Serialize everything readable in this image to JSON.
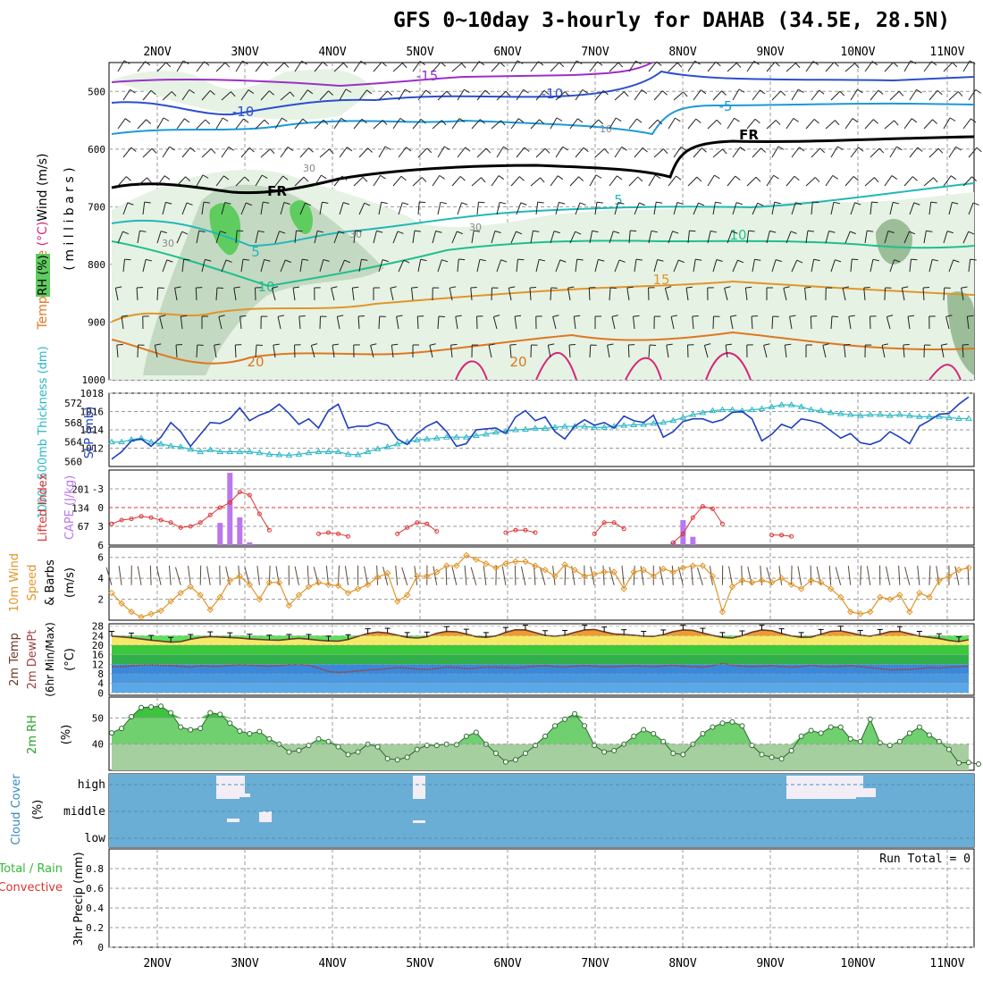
{
  "title": "GFS 0~10day 3-hourly for DAHAB (34.5E, 28.5N)",
  "colors": {
    "grid": "#999999",
    "slp": "#1f3fbf",
    "thickness": "#2ab7c6",
    "lifted": "#dd3333",
    "cape": "#bb77ee",
    "wind10": "#e0962a",
    "tempfill": "#f5e96a",
    "tempmax": "#ef9a2f",
    "dewline": "#a04040",
    "rh": "#55cc55",
    "cloud": "#6aaed6",
    "cloudclear": "#f3eef5",
    "precip_total": "#33bb33",
    "precip_conv": "#dd3333"
  },
  "chart_data": [
    {
      "id": "upper",
      "type": "contour",
      "x_labels_top": [
        "2NOV",
        "3NOV",
        "4NOV",
        "5NOV",
        "6NOV",
        "7NOV",
        "8NOV",
        "9NOV",
        "10NOV",
        "11NOV"
      ],
      "y_ticks": [
        "500",
        "600",
        "700",
        "800",
        "900",
        "1000"
      ],
      "ylabel_parts": [
        "RH (%)",
        "Temperature",
        "(°C)",
        "Wind (m/s)"
      ],
      "ylabel_units": "( m i l l i b a r s )",
      "contour_labels": [
        "-15",
        "-10",
        "-10",
        "-5",
        "FR",
        "FR",
        "5",
        "5",
        "10",
        "10",
        "15",
        "20",
        "20",
        "30",
        "30",
        "30",
        "30",
        "10"
      ]
    },
    {
      "id": "slp",
      "type": "line",
      "title": "SLP (mb)",
      "ylabel2": "1000~500mb Thickness (dm)",
      "y_ticks_right": [
        "1012",
        "1014",
        "1016",
        "1018"
      ],
      "y_ticks_left": [
        "560",
        "564",
        "568",
        "572"
      ],
      "series": [
        {
          "name": "SLP (mb)",
          "values": [
            1010.8,
            1011.6,
            1012.8,
            1013.0,
            1012.2,
            1013.2,
            1014.8,
            1013.8,
            1012.2,
            1013.5,
            1014.8,
            1014.7,
            1015.2,
            1016.4,
            1015.0,
            1015.6,
            1016.0,
            1016.8,
            1015.8,
            1014.6,
            1015.2,
            1014.2,
            1016.1,
            1016.8,
            1014.2,
            1014.4,
            1014.4,
            1014.8,
            1014.5,
            1013.0,
            1012.4,
            1013.6,
            1014.4,
            1014.9,
            1013.8,
            1012.2,
            1012.5,
            1014.0,
            1014.1,
            1014.2,
            1013.6,
            1015.4,
            1016.1,
            1015.0,
            1015.4,
            1013.8,
            1013.0,
            1014.4,
            1015.1,
            1014.5,
            1014.8,
            1014.2,
            1015.5,
            1015.0,
            1014.8,
            1015.6,
            1013.2,
            1013.8,
            1014.9,
            1015.2,
            1015.2,
            1014.8,
            1015.1,
            1015.9,
            1016.0,
            1015.2,
            1012.8,
            1013.5,
            1014.6,
            1014.2,
            1015.2,
            1015.0,
            1014.7,
            1013.9,
            1013.1,
            1013.6,
            1012.6,
            1012.4,
            1012.8,
            1013.8,
            1013.2,
            1012.5,
            1014.4,
            1015.0,
            1015.7,
            1015.8,
            1016.8,
            1017.6
          ]
        },
        {
          "name": "1000~500mb Thickness (dm)",
          "values": [
            564,
            564,
            564.5,
            564.8,
            564,
            563.6,
            563.2,
            563,
            562.5,
            562,
            562.4,
            562,
            562,
            562,
            562,
            561.8,
            561.5,
            561.4,
            561.3,
            561.5,
            561.8,
            562,
            562,
            562,
            561.5,
            561.4,
            562,
            562.6,
            563,
            563.6,
            564,
            564.4,
            564.6,
            564.8,
            565,
            565,
            565,
            565.3,
            565.6,
            566,
            566.2,
            566.5,
            566.6,
            566.8,
            566.8,
            567,
            567.2,
            567.2,
            567.2,
            567,
            567,
            567.2,
            567.4,
            567.5,
            567.6,
            567.8,
            568,
            568.4,
            569,
            569.6,
            570,
            570.4,
            570.6,
            570.6,
            570.4,
            570.6,
            570.8,
            571.2,
            571.6,
            571.6,
            571.2,
            570.6,
            570.4,
            570,
            569.8,
            569.6,
            569.4,
            569.6,
            569.6,
            569.4,
            569.6,
            569.4,
            569.2,
            569.2,
            569.2,
            569.0,
            568.8,
            568.8
          ]
        }
      ],
      "ylim": [
        1010,
        1018
      ]
    },
    {
      "id": "li_cape",
      "type": "bar",
      "ylabel": "Lifted Index",
      "ylabel2": "CAPE (J/kg)",
      "y_ticks_right": [
        "-3",
        "0",
        "3",
        "6"
      ],
      "y_ticks_left": [
        "201",
        "134",
        "67"
      ],
      "series": [
        {
          "name": "Lifted Index",
          "values": [
            2.6,
            2.0,
            1.8,
            1.4,
            1.6,
            2.0,
            2.4,
            3.2,
            3.0,
            2.4,
            1.2,
            0.0,
            -0.8,
            -2.5,
            -2.0,
            1.0,
            3.6,
            6,
            6,
            6,
            6,
            4.2,
            4.0,
            4.2,
            4.6,
            6,
            6,
            6,
            6,
            4.2,
            3.2,
            2.4,
            2.6,
            3.8,
            6,
            6,
            6,
            6,
            6,
            6,
            4.0,
            3.6,
            3.6,
            4.0,
            6,
            6,
            6,
            6,
            6,
            4.2,
            2.4,
            2.4,
            3.4,
            6,
            6,
            6,
            6,
            5.6,
            4.2,
            1.6,
            -0.2,
            0.2,
            2.6,
            6,
            6,
            6,
            6,
            4.4,
            4.4,
            4.6,
            6,
            6,
            6,
            6,
            6,
            6,
            6,
            6,
            6,
            6,
            6,
            6,
            6,
            6,
            6,
            6,
            6,
            6
          ]
        },
        {
          "name": "CAPE (J/kg)",
          "values": [
            0,
            0,
            0,
            0,
            0,
            0,
            0,
            0,
            0,
            0,
            0,
            80,
            260,
            100,
            10,
            0,
            0,
            0,
            0,
            0,
            0,
            0,
            0,
            0,
            0,
            0,
            0,
            0,
            0,
            0,
            0,
            0,
            0,
            0,
            0,
            0,
            0,
            0,
            0,
            0,
            0,
            0,
            0,
            0,
            0,
            0,
            0,
            0,
            0,
            0,
            0,
            0,
            0,
            0,
            0,
            0,
            0,
            10,
            90,
            30,
            0,
            0,
            0,
            0,
            0,
            0,
            0,
            0,
            0,
            0,
            0,
            0,
            0,
            0,
            0,
            0,
            0,
            0,
            0,
            0,
            0,
            0,
            0,
            0,
            0,
            0,
            0,
            0
          ]
        }
      ]
    },
    {
      "id": "wind10",
      "type": "line",
      "ylabel": "10m Wind",
      "ylabel2": "Speed",
      "ylabel3": "(m/s)",
      "ylabel4": "& Barbs",
      "y_ticks": [
        "2",
        "4",
        "6"
      ],
      "ylim": [
        0,
        7
      ],
      "series": [
        {
          "name": "Speed",
          "values": [
            2.6,
            1.6,
            0.8,
            0.3,
            0.6,
            0.9,
            1.8,
            2.6,
            3.2,
            2.4,
            1.0,
            2.2,
            3.8,
            4.2,
            3.4,
            2.0,
            3.6,
            3.6,
            1.4,
            2.4,
            3.2,
            3.6,
            3.4,
            3.3,
            2.6,
            3.0,
            3.4,
            4.1,
            4.5,
            1.8,
            2.4,
            4.2,
            4.2,
            4.6,
            5.2,
            5.2,
            6.2,
            5.8,
            5.4,
            5.0,
            5.4,
            5.6,
            5.6,
            5.2,
            4.8,
            4.2,
            5.3,
            4.8,
            4.2,
            4.4,
            4.6,
            4.6,
            3.0,
            4.6,
            4.8,
            4.2,
            4.9,
            4.6,
            5.0,
            5.2,
            5.2,
            4.2,
            0.8,
            3.2,
            3.8,
            3.6,
            3.8,
            3.6,
            4.0,
            3.4,
            3.0,
            3.8,
            3.6,
            3.0,
            2.2,
            0.8,
            0.6,
            0.8,
            2.2,
            2.0,
            2.4,
            0.8,
            2.6,
            2.2,
            3.8,
            4.2,
            4.8,
            5.0
          ]
        }
      ]
    },
    {
      "id": "temp2m",
      "type": "area",
      "ylabel": "2m Temp",
      "ylabel2": "2m DewPt",
      "ylabel3": "(6hr Min/Max)",
      "ylabel4": "(°C)",
      "y_ticks": [
        "28",
        "24",
        "20",
        "16",
        "12",
        "8",
        "4",
        "0"
      ],
      "series": [
        {
          "name": "2m Temp",
          "values": [
            23.8,
            23.5,
            23.1,
            22.6,
            22.1,
            21.7,
            21.3,
            21.5,
            22.5,
            23.2,
            23.6,
            23.4,
            23.2,
            23.0,
            22.6,
            22.4,
            22.2,
            22.1,
            22.5,
            22.9,
            22.5,
            22.1,
            21.8,
            21.7,
            22.4,
            23.7,
            24.9,
            25.5,
            25.1,
            24.2,
            23.3,
            23.0,
            23.5,
            25.0,
            25.8,
            25.6,
            24.7,
            23.6,
            23.3,
            23.9,
            25.4,
            26.5,
            26.4,
            25.3,
            24.1,
            23.8,
            24.2,
            25.4,
            26.4,
            26.6,
            25.6,
            24.7,
            24.5,
            24.2,
            23.8,
            23.7,
            24.4,
            25.7,
            26.4,
            26.2,
            25.1,
            24.1,
            23.3,
            23.0,
            24.0,
            25.5,
            26.4,
            26.1,
            24.9,
            23.9,
            23.3,
            23.4,
            24.6,
            25.8,
            26.0,
            25.2,
            24.2,
            23.8,
            24.6,
            25.7,
            25.8,
            24.8,
            23.8,
            23.3,
            22.8,
            22.0,
            21.5,
            22.3
          ]
        },
        {
          "name": "2m DewPt",
          "values": [
            11,
            11,
            11.3,
            11.6,
            11.8,
            11.5,
            11.4,
            11.2,
            10.8,
            11.4,
            11.1,
            11.2,
            11.5,
            11.8,
            11.6,
            11.4,
            11.2,
            11.4,
            11.8,
            11.9,
            11.6,
            10.4,
            9.0,
            8.6,
            8.8,
            9.2,
            9.6,
            9.8,
            10.2,
            10.6,
            10.4,
            10.0,
            9.8,
            10.2,
            10.8,
            10.6,
            10.2,
            10.4,
            10.8,
            10.8,
            10.6,
            10.4,
            10.8,
            11.2,
            11.4,
            11.0,
            10.8,
            11.2,
            11.4,
            11.2,
            10.9,
            11.0,
            11.2,
            11.3,
            11.2,
            11.0,
            11.3,
            11.6,
            11.2,
            11.0,
            10.8,
            11.4,
            12.4,
            11.6,
            11.2,
            11.0,
            11.2,
            11.4,
            11.0,
            10.8,
            11.0,
            11.6,
            11.2,
            10.9,
            11.2,
            11.4,
            11.0,
            10.6,
            10.2,
            9.6,
            9.8,
            9.8,
            10.2,
            10.6,
            10.4,
            10.8,
            11.0,
            11.2
          ]
        }
      ]
    },
    {
      "id": "rh2m",
      "type": "area",
      "ylabel": "2m RH",
      "ylabel2": "(%)",
      "y_ticks": [
        "50",
        "40"
      ],
      "ylim": [
        30,
        58
      ],
      "series": [
        {
          "name": "2m RH",
          "values": [
            44.3,
            46,
            50.5,
            54,
            54.2,
            54.5,
            52,
            46.5,
            45.5,
            46,
            52,
            51.4,
            48,
            45,
            44,
            44.8,
            42,
            40,
            37,
            37.6,
            39.5,
            42,
            41,
            39,
            36,
            37,
            40,
            39,
            34.5,
            34,
            35,
            38,
            39.5,
            39.5,
            40,
            39.8,
            43,
            44.5,
            40,
            36.5,
            33.2,
            34,
            36.5,
            39.5,
            43,
            47,
            49.5,
            51.6,
            47,
            39.5,
            37,
            37.5,
            40,
            43,
            45.5,
            44,
            41,
            36.5,
            36,
            40,
            44,
            46.5,
            48,
            48.5,
            47,
            39.5,
            36,
            35,
            34.4,
            37.5,
            43,
            45.2,
            44.2,
            46.5,
            46.5,
            42,
            41,
            49.5,
            40.5,
            39.5,
            41,
            44.2,
            46.5,
            43.5,
            41,
            38,
            32.8,
            33,
            32.4
          ]
        }
      ]
    },
    {
      "id": "cloud",
      "type": "heatmap",
      "ylabel": "Cloud Cover",
      "ylabel2": "(%)",
      "y_ticks": [
        "high",
        "middle",
        "low"
      ]
    },
    {
      "id": "precip",
      "type": "bar",
      "ylabel": "3hr Precip (mm)",
      "ylabel2": "Total / Rain",
      "ylabel3": "Convective",
      "y_ticks": [
        "0.8",
        "0.6",
        "0.4",
        "0.2",
        "0"
      ],
      "ylim": [
        0,
        1
      ],
      "run_total": "Run Total = 0",
      "x_labels_bottom": [
        "2NOV",
        "3NOV",
        "4NOV",
        "5NOV",
        "6NOV",
        "7NOV",
        "8NOV",
        "9NOV",
        "10NOV",
        "11NOV"
      ]
    }
  ]
}
